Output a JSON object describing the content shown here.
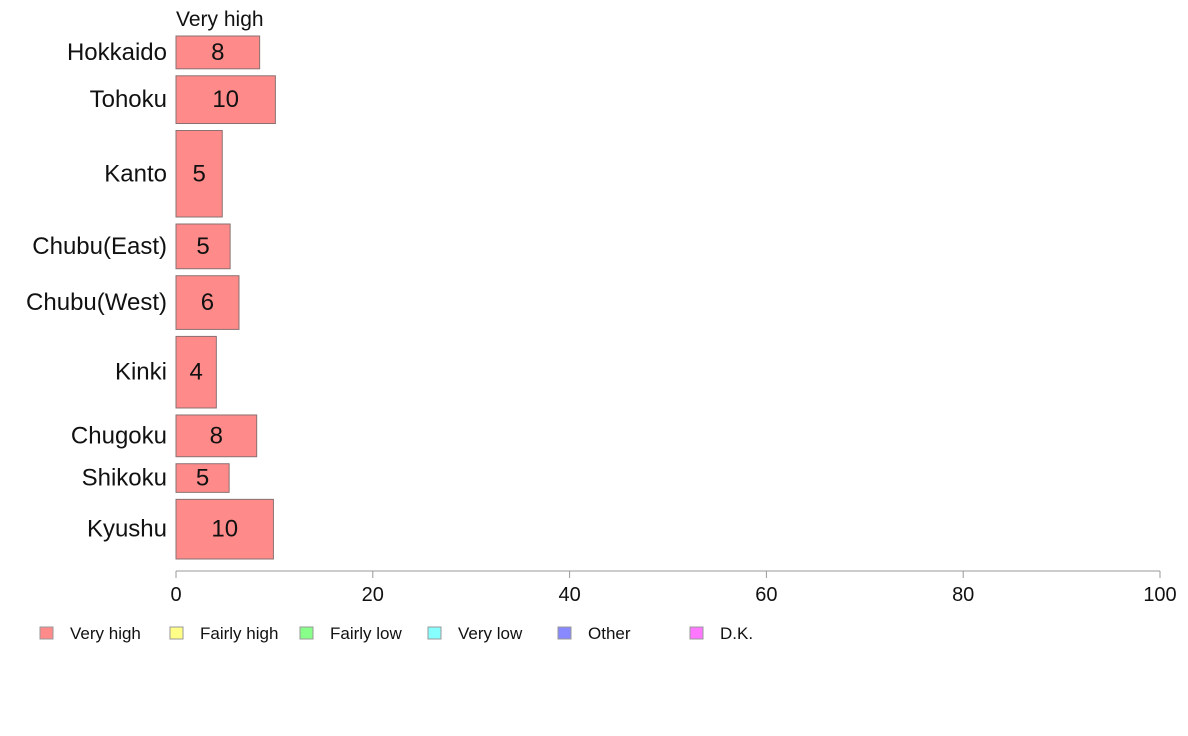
{
  "chart_data": {
    "type": "bar",
    "orientation": "horizontal",
    "stacked": true,
    "series_title": "Very high",
    "categories": [
      "Hokkaido",
      "Tohoku",
      "Kanto",
      "Chubu(East)",
      "Chubu(West)",
      "Kinki",
      "Chugoku",
      "Shikoku",
      "Kyushu"
    ],
    "relative_widths": [
      0.55,
      0.8,
      1.45,
      0.75,
      0.9,
      1.2,
      0.7,
      0.48,
      1.0
    ],
    "series": [
      {
        "name": "Very high",
        "color": "#ff8a8a",
        "values": [
          8.5,
          10.1,
          4.7,
          5.5,
          6.4,
          4.1,
          8.2,
          5.4,
          9.9
        ],
        "labels": [
          "8",
          "10",
          "5",
          "5",
          "6",
          "4",
          "8",
          "5",
          "10"
        ]
      }
    ],
    "xlim": [
      0,
      100
    ],
    "xticks": [
      "0",
      "20",
      "40",
      "60",
      "80",
      "100"
    ],
    "xtick_values": [
      0,
      20,
      40,
      60,
      80,
      100
    ],
    "grid": false,
    "legend": {
      "position": "bottom",
      "entries": [
        {
          "label": "Very high",
          "color": "#ff8a8a"
        },
        {
          "label": "Fairly high",
          "color": "#ffff88"
        },
        {
          "label": "Fairly low",
          "color": "#88ff88"
        },
        {
          "label": "Very low",
          "color": "#88ffff"
        },
        {
          "label": "Other",
          "color": "#8888ff"
        },
        {
          "label": "D.K.",
          "color": "#ff77ff"
        }
      ]
    }
  }
}
